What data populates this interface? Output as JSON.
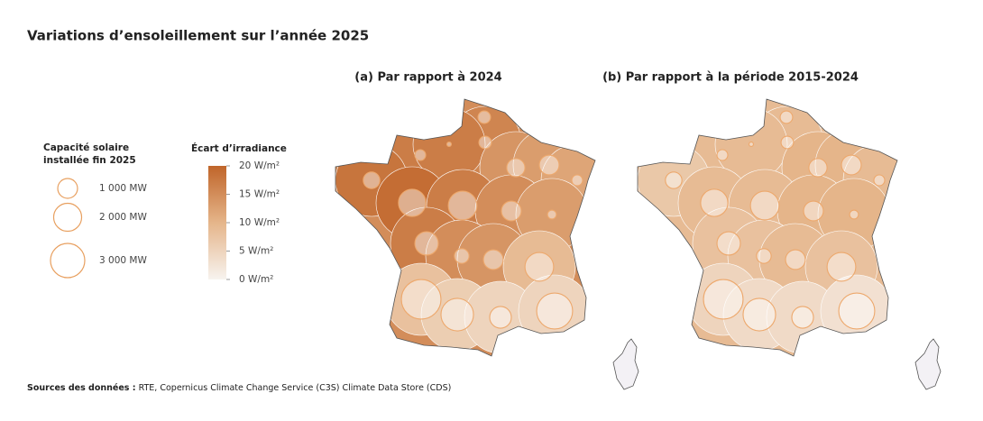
{
  "title": "Variations d’ensoleillement sur l’année 2025",
  "source": {
    "label": "Sources des données :",
    "text": "RTE, Copernicus Climate Change Service (C3S) Climate Data Store (CDS)"
  },
  "size_legend": {
    "title": [
      "Capacité solaire",
      "installée fin 2025"
    ],
    "ticks": [
      {
        "value": 1000,
        "label": "1 000 MW"
      },
      {
        "value": 2000,
        "label": "2 000 MW"
      },
      {
        "value": 3000,
        "label": "3 000 MW"
      }
    ]
  },
  "color_legend": {
    "title": "Écart d’irradiance",
    "lim": [
      0,
      20
    ],
    "ticks": [
      {
        "value": 20,
        "label": "20 W/m²"
      },
      {
        "value": 15,
        "label": "15 W/m²"
      },
      {
        "value": 10,
        "label": "10 W/m²"
      },
      {
        "value": 5,
        "label": "5 W/m²"
      },
      {
        "value": 0,
        "label": "0 W/m²"
      }
    ]
  },
  "chart_data": [
    {
      "type": "map",
      "title": "(a) Par rapport à 2024",
      "irradiance_anomaly": [
        15,
        16,
        17,
        17,
        14,
        13,
        12,
        18,
        19,
        17,
        15,
        13,
        17,
        15,
        14,
        9,
        8,
        6,
        5,
        5
      ],
      "solar_capacity_mw": [
        400,
        400,
        300,
        50,
        850,
        1000,
        300,
        700,
        1900,
        2100,
        1000,
        200,
        1400,
        550,
        1000,
        2100,
        4000,
        2700,
        1200,
        3300
      ]
    },
    {
      "type": "map",
      "title": "(b) Par rapport à la période 2015-2024",
      "irradiance_anomaly": [
        9,
        9,
        9,
        9,
        10,
        10,
        9,
        7,
        9,
        9,
        10,
        10,
        8,
        8,
        9,
        8,
        5,
        4,
        4,
        3
      ],
      "solar_capacity_mw": [
        400,
        400,
        300,
        50,
        850,
        1000,
        300,
        700,
        1900,
        2100,
        1000,
        200,
        1400,
        550,
        1000,
        2100,
        4000,
        2700,
        1200,
        3300
      ]
    }
  ]
}
